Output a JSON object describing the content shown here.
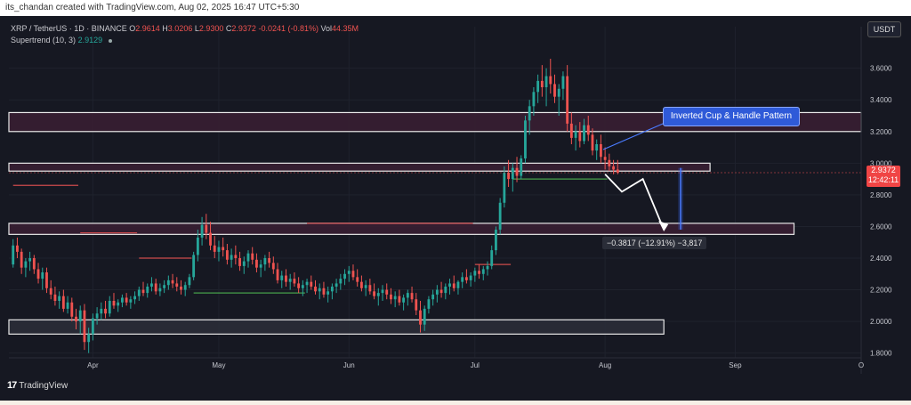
{
  "header": {
    "caption": "its_chandan created with TradingView.com, Aug 02, 2025 16:47 UTC+5:30"
  },
  "legend": {
    "symbol": "XRP / TetherUS · 1D · BINANCE",
    "o_label": "O",
    "o": "2.9614",
    "h_label": "H",
    "h": "3.0206",
    "l_label": "L",
    "l": "2.9300",
    "c_label": "C",
    "c": "2.9372",
    "change": "-0.0241 (-0.81%)",
    "vol_label": "Vol",
    "vol": "44.35M",
    "indicator": "Supertrend (10, 3)",
    "indicator_value": "2.9129"
  },
  "currency_button": "USDT",
  "annotation": "Inverted Cup & Handle Pattern",
  "measure_label": "−0.3817 (−12.91%) −3,817",
  "price_tag": {
    "price": "2.9372",
    "countdown": "12:42:11"
  },
  "footer": {
    "brand": "TradingView"
  },
  "colors": {
    "background": "#161822",
    "up": "#26a69a",
    "down": "#ef5350",
    "zone_fill": "#3a1f33",
    "zone_border": "#e8e8e8",
    "annotation": "#2f5ad8"
  },
  "chart_data": {
    "type": "candlestick",
    "title": "XRP / TetherUS · 1D · BINANCE",
    "ylim": [
      1.77,
      3.75
    ],
    "y_ticks": [
      "3.6000",
      "3.4000",
      "3.2000",
      "3.0000",
      "2.8000",
      "2.6000",
      "2.4000",
      "2.2000",
      "2.0000",
      "1.8000"
    ],
    "x_ticks": [
      "Apr",
      "May",
      "Jun",
      "Jul",
      "Aug",
      "Sep",
      "O"
    ],
    "x_tick_dates": [
      "2025-04-01",
      "2025-05-01",
      "2025-06-01",
      "2025-07-01",
      "2025-08-01",
      "2025-09-01",
      "2025-10-01"
    ],
    "x_range": [
      "2025-03-12",
      "2025-10-01"
    ],
    "zones": [
      {
        "name": "resistance-upper",
        "low": 3.2,
        "high": 3.32,
        "from": "2025-03-12",
        "to": "2025-10-01"
      },
      {
        "name": "resistance-lower",
        "low": 2.95,
        "high": 3.0,
        "from": "2025-03-12",
        "to": "2025-08-26"
      },
      {
        "name": "target-zone",
        "low": 2.55,
        "high": 2.62,
        "from": "2025-03-12",
        "to": "2025-09-15"
      },
      {
        "name": "support-zone",
        "low": 1.92,
        "high": 2.01,
        "from": "2025-03-12",
        "to": "2025-08-15"
      }
    ],
    "projection_path": [
      [
        "2025-08-01",
        2.93
      ],
      [
        "2025-08-05",
        2.82
      ],
      [
        "2025-08-10",
        2.9
      ],
      [
        "2025-08-15",
        2.58
      ]
    ],
    "measure": {
      "from": 2.97,
      "to": 2.58,
      "date": "2025-08-19"
    },
    "series": [
      {
        "name": "XRP / TetherUS",
        "start": "2025-03-13",
        "ohlc": [
          [
            2.36,
            2.52,
            2.34,
            2.48
          ],
          [
            2.48,
            2.53,
            2.4,
            2.44
          ],
          [
            2.44,
            2.46,
            2.3,
            2.34
          ],
          [
            2.34,
            2.4,
            2.28,
            2.38
          ],
          [
            2.38,
            2.44,
            2.32,
            2.4
          ],
          [
            2.4,
            2.42,
            2.3,
            2.33
          ],
          [
            2.33,
            2.37,
            2.24,
            2.27
          ],
          [
            2.27,
            2.34,
            2.2,
            2.31
          ],
          [
            2.31,
            2.34,
            2.18,
            2.21
          ],
          [
            2.21,
            2.26,
            2.14,
            2.17
          ],
          [
            2.17,
            2.22,
            2.1,
            2.13
          ],
          [
            2.13,
            2.19,
            2.08,
            2.16
          ],
          [
            2.16,
            2.2,
            2.06,
            2.08
          ],
          [
            2.08,
            2.16,
            2.05,
            2.12
          ],
          [
            2.12,
            2.15,
            2.0,
            2.03
          ],
          [
            2.03,
            2.08,
            1.95,
            2.0
          ],
          [
            2.0,
            2.1,
            1.92,
            2.07
          ],
          [
            2.07,
            2.11,
            1.82,
            1.87
          ],
          [
            1.87,
            1.96,
            1.8,
            1.92
          ],
          [
            1.92,
            2.05,
            1.88,
            2.02
          ],
          [
            2.02,
            2.09,
            1.98,
            2.05
          ],
          [
            2.05,
            2.12,
            2.01,
            2.08
          ],
          [
            2.08,
            2.13,
            2.02,
            2.05
          ],
          [
            2.05,
            2.16,
            2.03,
            2.13
          ],
          [
            2.13,
            2.18,
            2.08,
            2.1
          ],
          [
            2.1,
            2.14,
            2.06,
            2.12
          ],
          [
            2.12,
            2.17,
            2.09,
            2.15
          ],
          [
            2.15,
            2.18,
            2.1,
            2.12
          ],
          [
            2.12,
            2.16,
            2.08,
            2.14
          ],
          [
            2.14,
            2.19,
            2.11,
            2.16
          ],
          [
            2.16,
            2.22,
            2.13,
            2.2
          ],
          [
            2.2,
            2.25,
            2.16,
            2.18
          ],
          [
            2.18,
            2.24,
            2.15,
            2.22
          ],
          [
            2.22,
            2.28,
            2.19,
            2.24
          ],
          [
            2.24,
            2.27,
            2.17,
            2.19
          ],
          [
            2.19,
            2.24,
            2.16,
            2.21
          ],
          [
            2.21,
            2.26,
            2.18,
            2.23
          ],
          [
            2.23,
            2.29,
            2.2,
            2.26
          ],
          [
            2.26,
            2.3,
            2.21,
            2.24
          ],
          [
            2.24,
            2.28,
            2.19,
            2.22
          ],
          [
            2.22,
            2.26,
            2.17,
            2.2
          ],
          [
            2.2,
            2.25,
            2.16,
            2.23
          ],
          [
            2.23,
            2.3,
            2.21,
            2.28
          ],
          [
            2.28,
            2.44,
            2.26,
            2.42
          ],
          [
            2.42,
            2.58,
            2.38,
            2.53
          ],
          [
            2.53,
            2.66,
            2.48,
            2.61
          ],
          [
            2.61,
            2.68,
            2.52,
            2.56
          ],
          [
            2.56,
            2.63,
            2.45,
            2.48
          ],
          [
            2.48,
            2.54,
            2.4,
            2.44
          ],
          [
            2.44,
            2.51,
            2.38,
            2.47
          ],
          [
            2.47,
            2.53,
            2.41,
            2.45
          ],
          [
            2.45,
            2.49,
            2.36,
            2.39
          ],
          [
            2.39,
            2.46,
            2.34,
            2.42
          ],
          [
            2.42,
            2.48,
            2.36,
            2.4
          ],
          [
            2.4,
            2.44,
            2.32,
            2.35
          ],
          [
            2.35,
            2.41,
            2.3,
            2.38
          ],
          [
            2.38,
            2.45,
            2.34,
            2.43
          ],
          [
            2.43,
            2.47,
            2.36,
            2.39
          ],
          [
            2.39,
            2.43,
            2.31,
            2.34
          ],
          [
            2.34,
            2.39,
            2.28,
            2.36
          ],
          [
            2.36,
            2.42,
            2.32,
            2.4
          ],
          [
            2.4,
            2.44,
            2.34,
            2.37
          ],
          [
            2.37,
            2.41,
            2.3,
            2.33
          ],
          [
            2.33,
            2.37,
            2.24,
            2.26
          ],
          [
            2.26,
            2.32,
            2.21,
            2.29
          ],
          [
            2.29,
            2.33,
            2.22,
            2.25
          ],
          [
            2.25,
            2.3,
            2.2,
            2.27
          ],
          [
            2.27,
            2.31,
            2.22,
            2.24
          ],
          [
            2.24,
            2.28,
            2.18,
            2.21
          ],
          [
            2.21,
            2.26,
            2.16,
            2.23
          ],
          [
            2.23,
            2.27,
            2.18,
            2.25
          ],
          [
            2.25,
            2.29,
            2.2,
            2.22
          ],
          [
            2.22,
            2.26,
            2.17,
            2.19
          ],
          [
            2.19,
            2.24,
            2.14,
            2.21
          ],
          [
            2.21,
            2.25,
            2.15,
            2.17
          ],
          [
            2.17,
            2.22,
            2.12,
            2.19
          ],
          [
            2.19,
            2.24,
            2.14,
            2.22
          ],
          [
            2.22,
            2.27,
            2.18,
            2.24
          ],
          [
            2.24,
            2.3,
            2.2,
            2.27
          ],
          [
            2.27,
            2.33,
            2.23,
            2.3
          ],
          [
            2.3,
            2.35,
            2.25,
            2.32
          ],
          [
            2.32,
            2.36,
            2.26,
            2.28
          ],
          [
            2.28,
            2.33,
            2.22,
            2.25
          ],
          [
            2.25,
            2.29,
            2.19,
            2.21
          ],
          [
            2.21,
            2.26,
            2.16,
            2.23
          ],
          [
            2.23,
            2.27,
            2.17,
            2.19
          ],
          [
            2.19,
            2.24,
            2.14,
            2.16
          ],
          [
            2.16,
            2.21,
            2.1,
            2.18
          ],
          [
            2.18,
            2.23,
            2.13,
            2.2
          ],
          [
            2.2,
            2.24,
            2.14,
            2.17
          ],
          [
            2.17,
            2.21,
            2.11,
            2.14
          ],
          [
            2.14,
            2.19,
            2.09,
            2.16
          ],
          [
            2.16,
            2.2,
            2.1,
            2.12
          ],
          [
            2.12,
            2.17,
            2.07,
            2.15
          ],
          [
            2.15,
            2.2,
            2.1,
            2.18
          ],
          [
            2.18,
            2.22,
            2.12,
            2.14
          ],
          [
            2.14,
            2.18,
            2.04,
            2.07
          ],
          [
            2.07,
            2.13,
            1.93,
            1.98
          ],
          [
            1.98,
            2.1,
            1.94,
            2.08
          ],
          [
            2.08,
            2.16,
            2.05,
            2.14
          ],
          [
            2.14,
            2.2,
            2.1,
            2.17
          ],
          [
            2.17,
            2.23,
            2.12,
            2.2
          ],
          [
            2.2,
            2.25,
            2.15,
            2.18
          ],
          [
            2.18,
            2.24,
            2.14,
            2.22
          ],
          [
            2.22,
            2.27,
            2.17,
            2.24
          ],
          [
            2.24,
            2.29,
            2.19,
            2.21
          ],
          [
            2.21,
            2.26,
            2.17,
            2.25
          ],
          [
            2.25,
            2.31,
            2.21,
            2.28
          ],
          [
            2.28,
            2.33,
            2.24,
            2.26
          ],
          [
            2.26,
            2.31,
            2.22,
            2.29
          ],
          [
            2.29,
            2.34,
            2.25,
            2.32
          ],
          [
            2.32,
            2.36,
            2.27,
            2.3
          ],
          [
            2.3,
            2.35,
            2.26,
            2.33
          ],
          [
            2.33,
            2.38,
            2.29,
            2.35
          ],
          [
            2.35,
            2.48,
            2.33,
            2.45
          ],
          [
            2.45,
            2.6,
            2.42,
            2.58
          ],
          [
            2.58,
            2.78,
            2.55,
            2.75
          ],
          [
            2.75,
            2.98,
            2.72,
            2.94
          ],
          [
            2.94,
            3.02,
            2.85,
            2.9
          ],
          [
            2.9,
            3.0,
            2.82,
            2.97
          ],
          [
            2.97,
            3.04,
            2.88,
            2.92
          ],
          [
            2.92,
            3.05,
            2.9,
            3.03
          ],
          [
            3.03,
            3.3,
            3.0,
            3.27
          ],
          [
            3.27,
            3.4,
            3.18,
            3.36
          ],
          [
            3.36,
            3.48,
            3.3,
            3.45
          ],
          [
            3.45,
            3.56,
            3.38,
            3.52
          ],
          [
            3.52,
            3.62,
            3.42,
            3.48
          ],
          [
            3.48,
            3.6,
            3.36,
            3.55
          ],
          [
            3.55,
            3.66,
            3.44,
            3.5
          ],
          [
            3.5,
            3.56,
            3.38,
            3.42
          ],
          [
            3.42,
            3.5,
            3.3,
            3.47
          ],
          [
            3.47,
            3.58,
            3.4,
            3.55
          ],
          [
            3.55,
            3.62,
            3.2,
            3.25
          ],
          [
            3.25,
            3.32,
            3.12,
            3.16
          ],
          [
            3.16,
            3.24,
            3.08,
            3.2
          ],
          [
            3.2,
            3.26,
            3.1,
            3.14
          ],
          [
            3.14,
            3.28,
            3.12,
            3.24
          ],
          [
            3.24,
            3.3,
            3.14,
            3.18
          ],
          [
            3.18,
            3.22,
            3.05,
            3.08
          ],
          [
            3.08,
            3.15,
            3.02,
            3.12
          ],
          [
            3.12,
            3.18,
            3.0,
            3.04
          ],
          [
            3.04,
            3.1,
            2.96,
            3.02
          ],
          [
            3.02,
            3.06,
            2.95,
            2.98
          ],
          [
            2.98,
            3.02,
            2.93,
            2.96
          ],
          [
            2.96,
            3.02,
            2.93,
            2.94
          ]
        ]
      }
    ],
    "supertrend": [
      {
        "from": "2025-03-13",
        "to": "2025-03-28",
        "value": 2.86,
        "direction": "down"
      },
      {
        "from": "2025-03-29",
        "to": "2025-04-11",
        "value": 2.56,
        "direction": "down"
      },
      {
        "from": "2025-04-12",
        "to": "2025-04-24",
        "value": 2.4,
        "direction": "down"
      },
      {
        "from": "2025-04-25",
        "to": "2025-05-21",
        "value": 2.18,
        "direction": "up"
      },
      {
        "from": "2025-05-22",
        "to": "2025-06-30",
        "value": 2.62,
        "direction": "down"
      },
      {
        "from": "2025-07-01",
        "to": "2025-07-09",
        "value": 2.36,
        "direction": "down"
      },
      {
        "from": "2025-07-10",
        "to": "2025-08-01",
        "value": 2.9,
        "direction": "up"
      }
    ]
  }
}
